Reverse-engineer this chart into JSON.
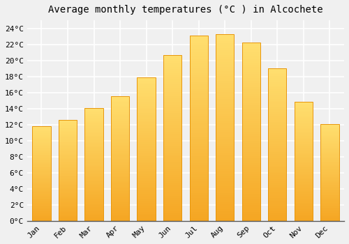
{
  "title": "Average monthly temperatures (°C ) in Alcochete",
  "months": [
    "Jan",
    "Feb",
    "Mar",
    "Apr",
    "May",
    "Jun",
    "Jul",
    "Aug",
    "Sep",
    "Oct",
    "Nov",
    "Dec"
  ],
  "values": [
    11.8,
    12.6,
    14.1,
    15.5,
    17.9,
    20.7,
    23.1,
    23.3,
    22.2,
    19.0,
    14.8,
    12.1
  ],
  "bar_color_bottom": "#F5A623",
  "bar_color_top": "#FFD966",
  "bar_edge_color": "#E8960A",
  "ylim": [
    0,
    25
  ],
  "yticks": [
    0,
    2,
    4,
    6,
    8,
    10,
    12,
    14,
    16,
    18,
    20,
    22,
    24
  ],
  "ytick_labels": [
    "0°C",
    "2°C",
    "4°C",
    "6°C",
    "8°C",
    "10°C",
    "12°C",
    "14°C",
    "16°C",
    "18°C",
    "20°C",
    "22°C",
    "24°C"
  ],
  "background_color": "#f0f0f0",
  "grid_color": "#ffffff",
  "title_fontsize": 10,
  "tick_fontsize": 8,
  "font_family": "monospace"
}
